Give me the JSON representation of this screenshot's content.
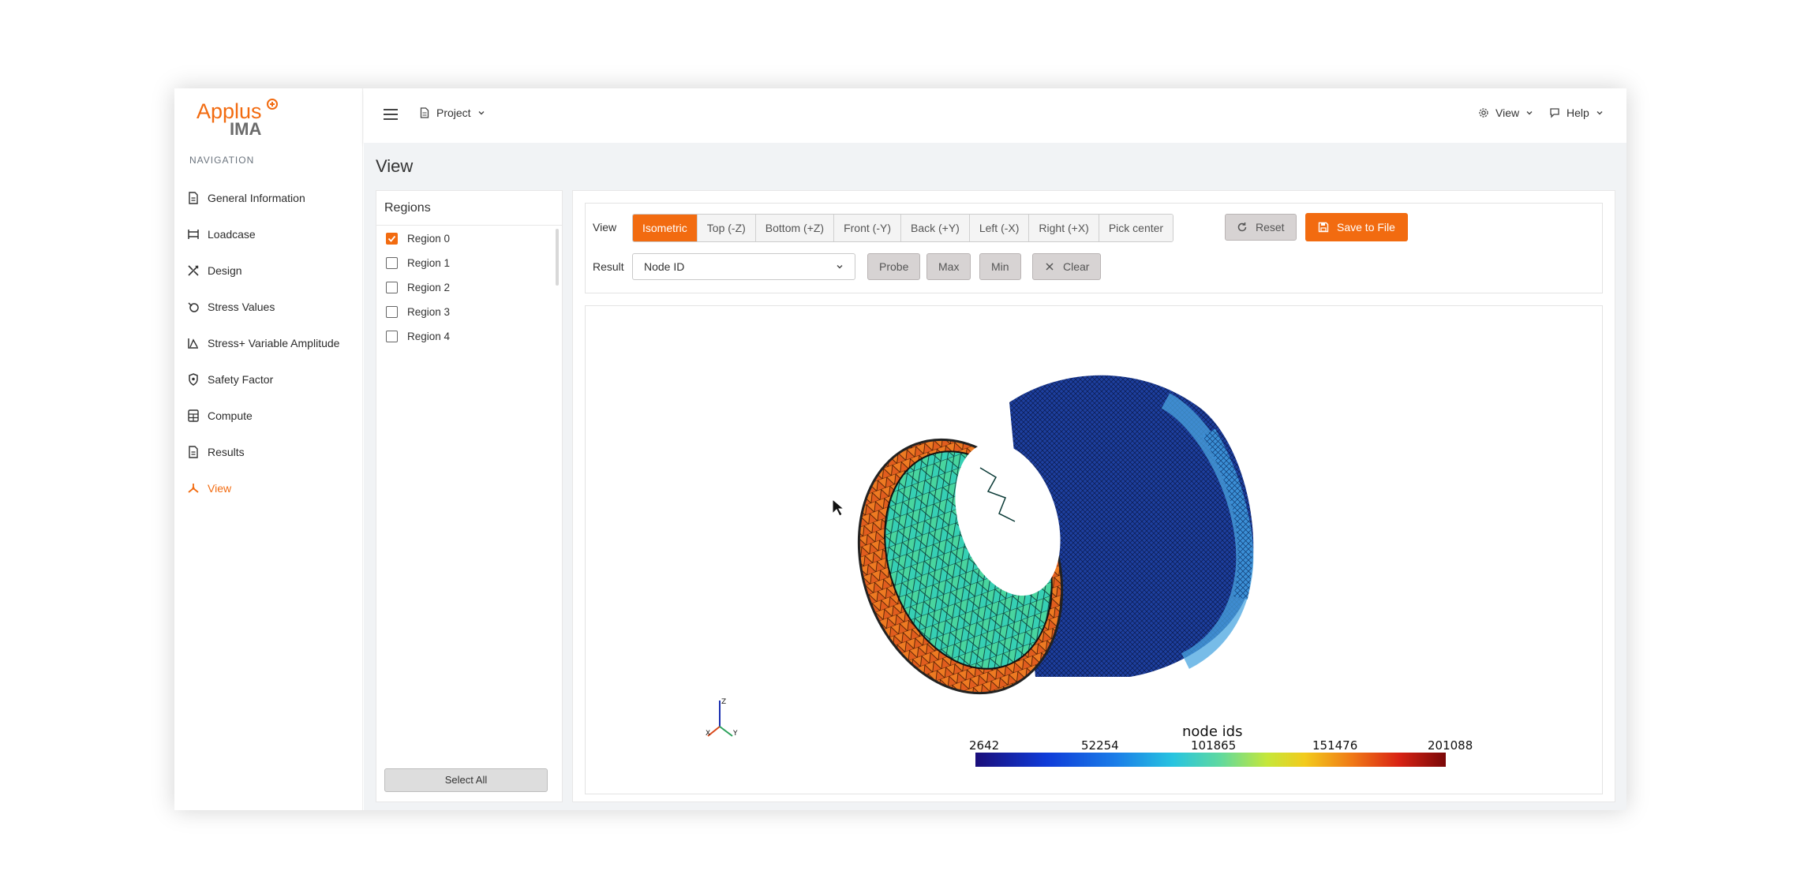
{
  "logo": {
    "line1": "Applus",
    "line2": "IMA"
  },
  "sidebar": {
    "nav_title": "NAVIGATION",
    "items": [
      {
        "label": "General Information",
        "icon": "document-icon"
      },
      {
        "label": "Loadcase",
        "icon": "loadcase-icon"
      },
      {
        "label": "Design",
        "icon": "design-tools-icon"
      },
      {
        "label": "Stress Values",
        "icon": "stress-icon"
      },
      {
        "label": "Stress+ Variable Amplitude",
        "icon": "chart-triangle-icon"
      },
      {
        "label": "Safety Factor",
        "icon": "shield-icon"
      },
      {
        "label": "Compute",
        "icon": "calculator-icon"
      },
      {
        "label": "Results",
        "icon": "document-icon"
      },
      {
        "label": "View",
        "icon": "view-tripod-icon",
        "active": true
      }
    ]
  },
  "topbar": {
    "project_label": "Project",
    "view_label": "View",
    "help_label": "Help"
  },
  "page": {
    "title": "View"
  },
  "regions": {
    "title": "Regions",
    "items": [
      {
        "label": "Region 0",
        "checked": true
      },
      {
        "label": "Region 1",
        "checked": false
      },
      {
        "label": "Region 2",
        "checked": false
      },
      {
        "label": "Region 3",
        "checked": false
      },
      {
        "label": "Region 4",
        "checked": false
      }
    ],
    "select_all_label": "Select All"
  },
  "controls": {
    "view_label": "View",
    "view_buttons": [
      "Isometric",
      "Top (-Z)",
      "Bottom (+Z)",
      "Front (-Y)",
      "Back (+Y)",
      "Left (-X)",
      "Right (+X)",
      "Pick center"
    ],
    "active_view": "Isometric",
    "reset_label": "Reset",
    "save_label": "Save to File",
    "result_label": "Result",
    "result_value": "Node ID",
    "probe_label": "Probe",
    "max_label": "Max",
    "min_label": "Min",
    "clear_label": "Clear"
  },
  "viewport": {
    "scalar_bar_title": "node ids",
    "ticks": [
      "2642",
      "52254",
      "101865",
      "151476",
      "201088"
    ],
    "axes": {
      "x": "X",
      "y": "Y",
      "z": "Z"
    }
  },
  "colors": {
    "accent": "#f26b10"
  }
}
